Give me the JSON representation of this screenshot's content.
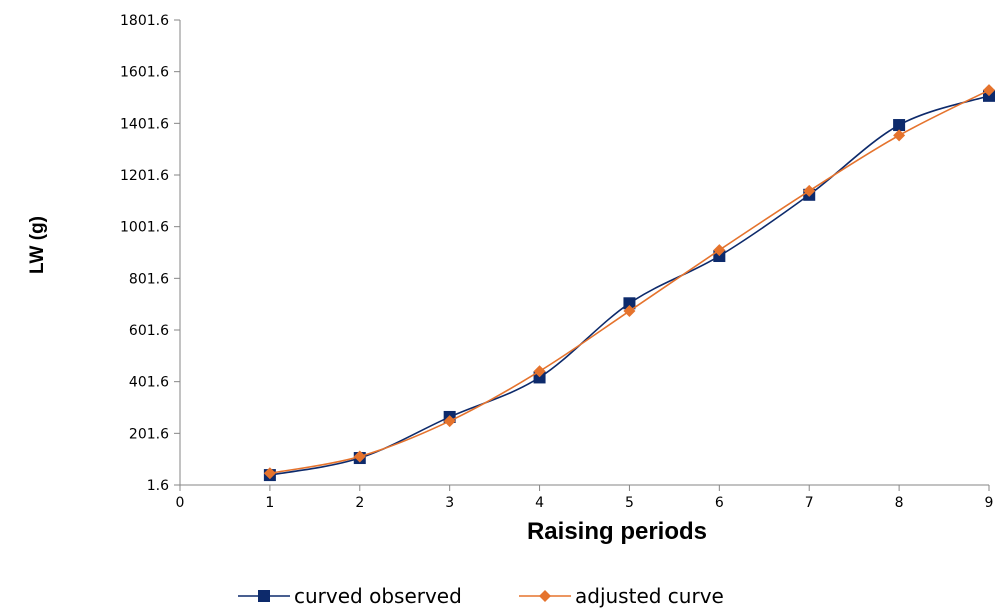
{
  "chart_data": {
    "type": "line",
    "xlabel": "Raising periods",
    "ylabel": "LW (g)",
    "xlim": [
      0,
      9
    ],
    "ylim": [
      1.6,
      1801.6
    ],
    "x_ticks": [
      "0",
      "1",
      "2",
      "3",
      "4",
      "5",
      "6",
      "7",
      "8",
      "9"
    ],
    "y_ticks": [
      "1.6",
      "201.6",
      "401.6",
      "601.6",
      "801.6",
      "1001.6",
      "1201.6",
      "1401.6",
      "1601.6",
      "1801.6"
    ],
    "grid": false,
    "legend_position": "bottom",
    "series": [
      {
        "name": "curved observed",
        "color": "#0d2a6b",
        "marker": "square",
        "x": [
          1,
          2,
          3,
          4,
          5,
          6,
          7,
          8,
          9
        ],
        "values": [
          40,
          106,
          265,
          418,
          705,
          888,
          1125,
          1395,
          1508
        ]
      },
      {
        "name": "adjusted curve",
        "color": "#e5732d",
        "marker": "diamond",
        "x": [
          1,
          2,
          3,
          4,
          5,
          6,
          7,
          8,
          9
        ],
        "values": [
          47,
          112,
          249,
          442,
          675,
          911,
          1140,
          1355,
          1530
        ]
      }
    ]
  }
}
